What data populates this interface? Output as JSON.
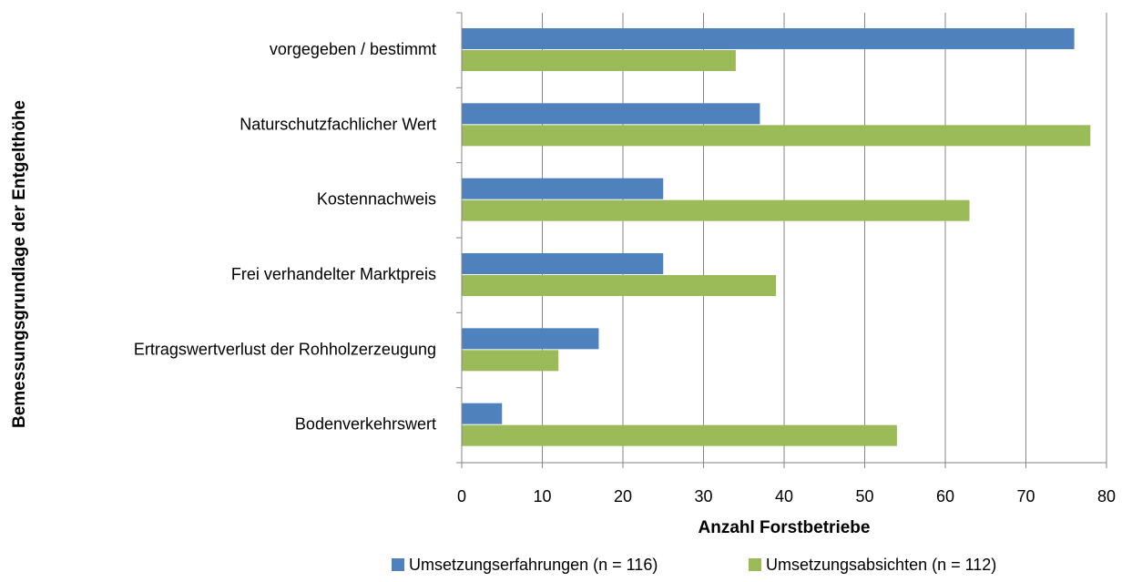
{
  "chart_data": {
    "type": "hbar",
    "x_label": "Anzahl Forstbetriebe",
    "y_label": "Bemessungsgrundlage der Entgelthöhe",
    "categories": [
      "vorgegeben / bestimmt",
      "Naturschutzfachlicher Wert",
      "Kostennachweis",
      "Frei verhandelter Marktpreis",
      "Ertragswertverlust der Rohholzerzeugung",
      "Bodenverkehrswert"
    ],
    "series": [
      {
        "name": "Umsetzungserfahrungen (n = 116)",
        "color": "#4f81bd",
        "values": [
          76,
          37,
          25,
          25,
          17,
          5
        ]
      },
      {
        "name": "Umsetzungsabsichten (n = 112)",
        "color": "#9bbb59",
        "values": [
          34,
          78,
          63,
          39,
          12,
          54
        ]
      }
    ],
    "xlim": [
      0,
      80
    ],
    "xticks": [
      0,
      10,
      20,
      30,
      40,
      50,
      60,
      70,
      80
    ],
    "grid": true,
    "legend": "bottom"
  }
}
